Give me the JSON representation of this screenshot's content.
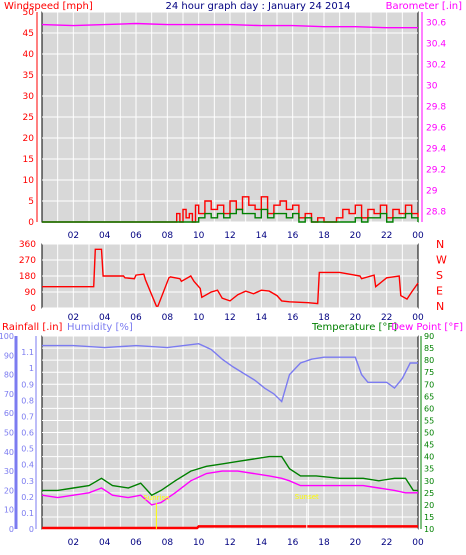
{
  "chart_data": {
    "type": "line",
    "title": "24 hour graph day : January 24 2014",
    "colors": {
      "background": "#ffffff",
      "plot": "#d8d8d8",
      "grid": "#ffffff",
      "axis": "#000000",
      "wind": "#ff0000",
      "gust": "#008000",
      "barometer": "#ff00ff",
      "direction": "#ff0000",
      "humidity": "#7b7bf0",
      "temperature": "#008000",
      "dewpoint": "#ff00ff",
      "rain": "#ff0000",
      "xaxis_text": "#000080",
      "sunrise": "#ffff00"
    },
    "x_ticks": [
      "02",
      "04",
      "06",
      "08",
      "10",
      "12",
      "14",
      "16",
      "18",
      "20",
      "22",
      "00"
    ],
    "wind_panel": {
      "left_label": "Windspeed [mph]",
      "right_label": "Barometer [.in]",
      "left_ticks": [
        "50",
        "45",
        "40",
        "35",
        "30",
        "25",
        "20",
        "15",
        "10",
        "5",
        "0"
      ],
      "right_ticks": [
        "30.6",
        "30.4",
        "30.2",
        "30",
        "29.8",
        "29.6",
        "29.4",
        "29.2",
        "29",
        "28.8"
      ],
      "left_ylim": [
        0,
        50
      ],
      "right_ylim": [
        28.7,
        30.7
      ],
      "series": [
        {
          "name": "Windspeed",
          "x": [
            0.0,
            7.5,
            8.6,
            8.8,
            9.0,
            9.2,
            9.4,
            9.6,
            9.8,
            10.0,
            10.4,
            10.8,
            11.2,
            11.6,
            12.0,
            12.4,
            12.8,
            13.2,
            13.6,
            14.0,
            14.4,
            14.8,
            15.2,
            15.6,
            16.0,
            16.4,
            16.8,
            17.2,
            17.6,
            18.0,
            18.4,
            18.8,
            19.2,
            19.6,
            20.0,
            20.4,
            20.8,
            21.2,
            21.6,
            22.0,
            22.4,
            22.8,
            23.2,
            23.6,
            24.0
          ],
          "y": [
            0,
            0,
            2,
            0,
            3,
            1,
            2,
            0,
            4,
            2,
            5,
            3,
            4,
            2,
            5,
            3,
            6,
            4,
            3,
            6,
            2,
            4,
            5,
            3,
            4,
            1,
            2,
            0,
            1,
            0,
            0,
            1,
            3,
            2,
            4,
            1,
            3,
            2,
            4,
            1,
            3,
            2,
            4,
            2,
            1
          ]
        },
        {
          "name": "Gust",
          "x": [
            0.0,
            9.6,
            10.0,
            10.4,
            10.8,
            11.2,
            11.6,
            12.0,
            12.4,
            12.8,
            13.2,
            13.6,
            14.0,
            14.4,
            14.8,
            15.2,
            15.6,
            16.0,
            16.4,
            16.8,
            17.2,
            19.6,
            20.0,
            20.4,
            20.8,
            21.2,
            21.6,
            22.0,
            22.4,
            22.8,
            23.2,
            23.6,
            24.0
          ],
          "y": [
            0,
            0,
            1,
            2,
            1,
            2,
            1,
            2,
            3,
            2,
            2,
            1,
            3,
            1,
            2,
            2,
            1,
            2,
            0,
            1,
            0,
            0,
            1,
            0,
            1,
            1,
            2,
            0,
            1,
            1,
            2,
            1,
            0
          ]
        },
        {
          "name": "Barometer",
          "x": [
            0,
            2,
            4,
            6,
            8,
            10,
            12,
            14,
            16,
            18,
            20,
            22,
            24
          ],
          "y": [
            30.58,
            30.57,
            30.58,
            30.59,
            30.58,
            30.58,
            30.58,
            30.57,
            30.57,
            30.56,
            30.56,
            30.55,
            30.55
          ]
        }
      ]
    },
    "direction_panel": {
      "left_ticks": [
        "360",
        "270",
        "180",
        "90",
        "0"
      ],
      "right_ticks": [
        "N",
        "W",
        "S",
        "E",
        "N"
      ],
      "ylim": [
        0,
        360
      ],
      "series": [
        {
          "name": "Wind direction",
          "x": [
            0.0,
            2.5,
            2.6,
            3.3,
            3.4,
            3.8,
            3.9,
            5.2,
            5.3,
            5.9,
            6.0,
            6.5,
            6.6,
            7.3,
            7.4,
            8.1,
            8.2,
            8.8,
            8.9,
            9.5,
            9.7,
            10.1,
            10.2,
            10.8,
            11.2,
            11.5,
            12.0,
            12.5,
            13.0,
            13.5,
            14.0,
            14.5,
            15.0,
            15.3,
            15.8,
            17.0,
            17.6,
            17.7,
            18.2,
            19.0,
            20.3,
            20.4,
            21.2,
            21.3,
            22.0,
            22.8,
            22.9,
            23.3,
            23.6,
            24.0
          ],
          "y": [
            120,
            120,
            120,
            120,
            330,
            330,
            180,
            180,
            170,
            165,
            185,
            190,
            160,
            10,
            10,
            170,
            175,
            165,
            150,
            180,
            150,
            110,
            60,
            90,
            100,
            55,
            40,
            75,
            95,
            80,
            100,
            95,
            70,
            40,
            35,
            30,
            25,
            200,
            200,
            200,
            180,
            165,
            185,
            120,
            170,
            180,
            70,
            50,
            90,
            140
          ]
        }
      ]
    },
    "climate_panel": {
      "left_labels": [
        "Rainfall [.in]",
        "Humidity [%]"
      ],
      "right_labels": [
        "Temperature [°F]",
        "Dew Point [°F]"
      ],
      "humidity_ticks": [
        "100",
        "90",
        "80",
        "70",
        "60",
        "50",
        "40",
        "30",
        "20",
        "10",
        "0"
      ],
      "rain_ticks": [
        "1.1",
        "1",
        "0.9",
        "0.8",
        "0.7",
        "0.6",
        "0.5",
        "0.4",
        "0.3",
        "0.2",
        "0.1",
        "0"
      ],
      "temp_ticks": [
        "90",
        "85",
        "80",
        "75",
        "70",
        "65",
        "60",
        "55",
        "50",
        "45",
        "40",
        "35",
        "30",
        "25",
        "20",
        "15",
        "10"
      ],
      "humidity_ylim": [
        0,
        100
      ],
      "rain_ylim": [
        0,
        1.2
      ],
      "temp_ylim": [
        10,
        90
      ],
      "sunrise_label": "Sunrise",
      "sunset_label": "Sunset",
      "sunrise_hour": 7.3,
      "sunset_hour": 16.9,
      "series": [
        {
          "name": "Humidity",
          "x": [
            0,
            2,
            4,
            6,
            8,
            10,
            10.8,
            11.5,
            12.2,
            13.0,
            13.6,
            14.2,
            14.8,
            15.3,
            15.8,
            16.5,
            17.2,
            18,
            19,
            20,
            20.4,
            20.8,
            21.5,
            22,
            22.5,
            23,
            23.5,
            24
          ],
          "y": [
            95,
            95,
            94,
            95,
            94,
            96,
            93,
            88,
            84,
            80,
            77,
            73,
            70,
            66,
            80,
            86,
            88,
            89,
            89,
            89,
            80,
            76,
            76,
            76,
            73,
            78,
            86,
            86
          ]
        },
        {
          "name": "Temperature",
          "x": [
            0,
            1,
            2,
            3,
            3.8,
            4.5,
            5.5,
            6.3,
            7.0,
            7.6,
            8.5,
            9.5,
            10.5,
            11.5,
            12.5,
            13.5,
            14.5,
            15.3,
            15.8,
            16.5,
            17.5,
            19,
            20.5,
            21.5,
            22.5,
            23.2,
            23.7,
            24
          ],
          "y": [
            26,
            26,
            27,
            28,
            31,
            28,
            27,
            29,
            24,
            26,
            30,
            34,
            36,
            37,
            38,
            39,
            40,
            40,
            35,
            32,
            32,
            31,
            31,
            30,
            31,
            31,
            26,
            26
          ]
        },
        {
          "name": "Dew Point",
          "x": [
            0,
            1,
            2,
            3,
            3.8,
            4.5,
            5.5,
            6.3,
            7.0,
            7.6,
            8.5,
            9.5,
            10.5,
            11.5,
            12.5,
            13.5,
            14.5,
            15.3,
            15.8,
            16.5,
            17.5,
            19,
            20.5,
            21.5,
            22.5,
            23.2,
            23.7,
            24
          ],
          "y": [
            24,
            23,
            24,
            25,
            27,
            24,
            23,
            24,
            20,
            21,
            25,
            30,
            33,
            34,
            34,
            33,
            32,
            31,
            30,
            28,
            28,
            28,
            28,
            27,
            26,
            25,
            25,
            25
          ]
        },
        {
          "name": "Rainfall",
          "x": [
            0,
            9.9,
            10.0,
            24
          ],
          "y": [
            0,
            0,
            0.01,
            0.01
          ]
        }
      ]
    }
  }
}
